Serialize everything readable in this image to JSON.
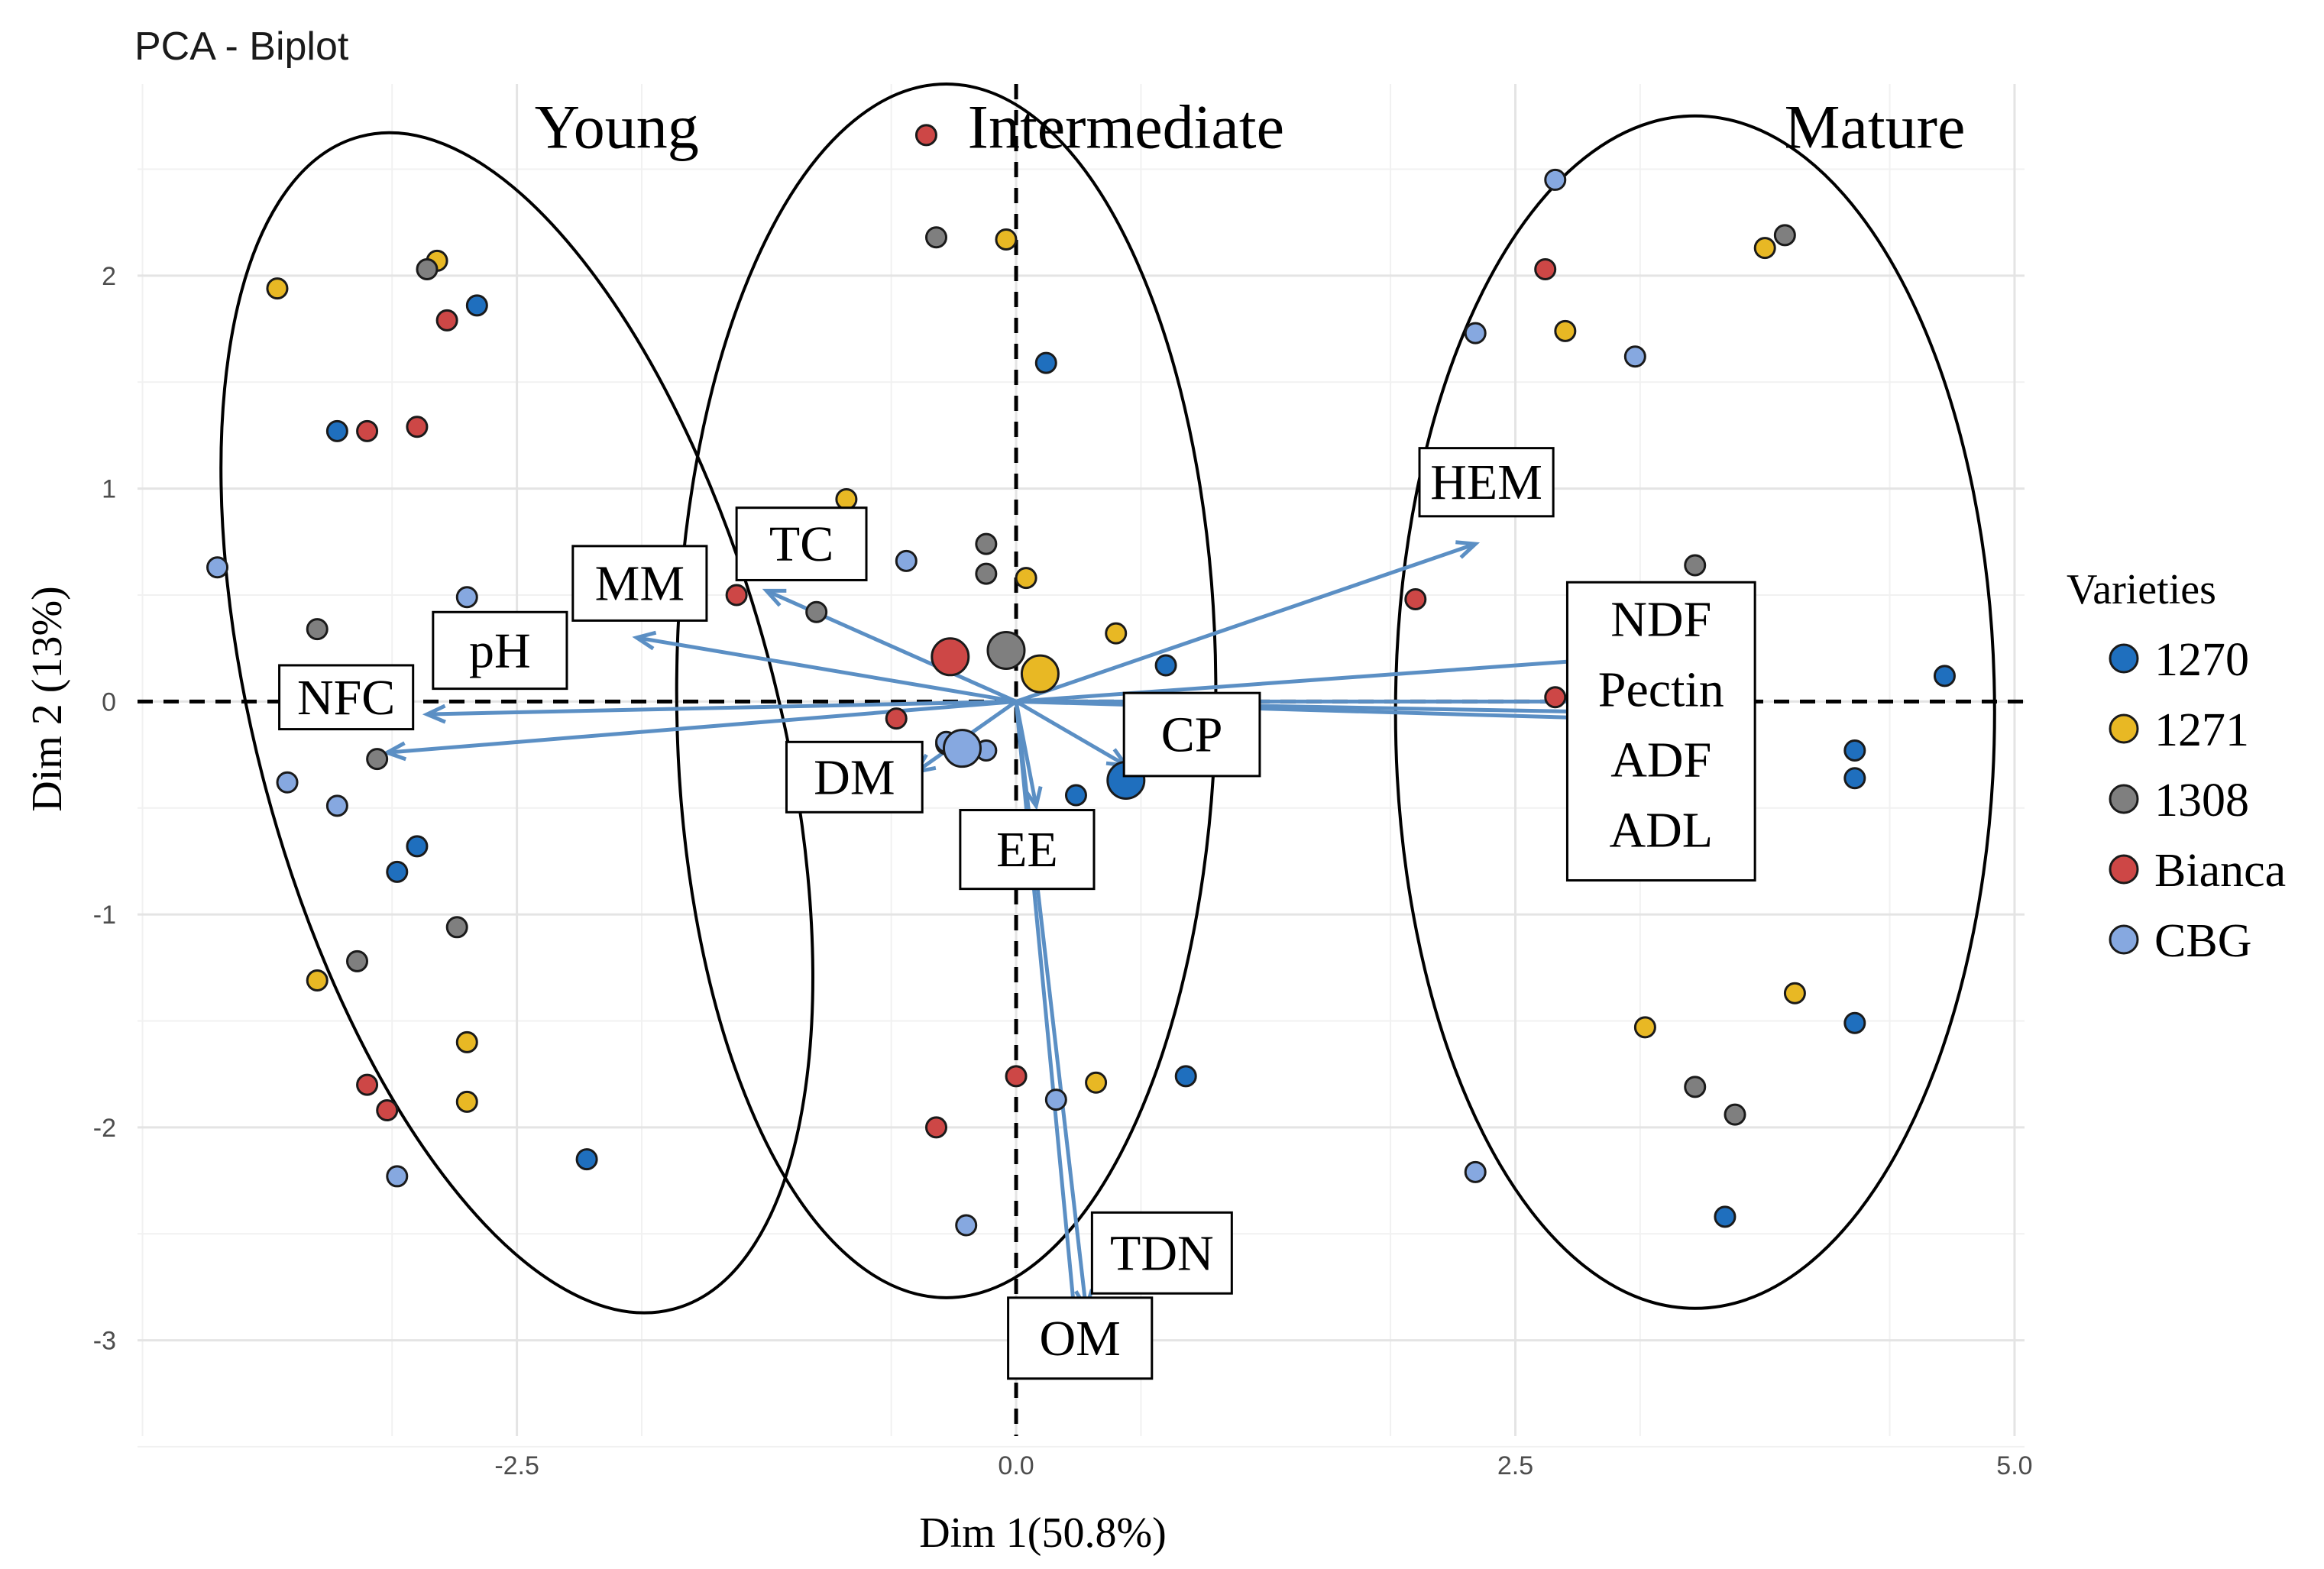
{
  "chart_data": {
    "type": "scatter",
    "title": "PCA - Biplot",
    "xlabel": "Dim 1(50.8%)",
    "ylabel": "Dim 2 (13%)",
    "xlim": [
      -4.4,
      5.05
    ],
    "ylim": [
      -3.45,
      2.9
    ],
    "x_ticks": [
      -2.5,
      0.0,
      2.5,
      5.0
    ],
    "x_tick_labels": [
      "-2.5",
      "0.0",
      "2.5",
      "5.0"
    ],
    "y_ticks": [
      -3,
      -2,
      -1,
      0,
      1,
      2
    ],
    "y_tick_labels": [
      "-3",
      "-2",
      "-1",
      "0",
      "1",
      "2"
    ],
    "grid": true,
    "legend": {
      "title": "Varieties",
      "position": "right",
      "entries": [
        "1270",
        "1271",
        "1308",
        "Bianca",
        "CBG"
      ]
    },
    "colors": {
      "1270": "#1f6fbe",
      "1271": "#e8b824",
      "1308": "#7f7f7f",
      "Bianca": "#cd4746",
      "CBG": "#86a8e0",
      "arrow": "#5b8fc4"
    },
    "groups": [
      {
        "label": "Young",
        "center": [
          -2.5,
          -0.1
        ],
        "rx": 1.3,
        "ry": 2.85,
        "rotation_deg": 15
      },
      {
        "label": "Intermediate",
        "center": [
          -0.35,
          0.05
        ],
        "rx": 1.35,
        "ry": 2.85,
        "rotation_deg": 0
      },
      {
        "label": "Mature",
        "center": [
          3.4,
          -0.05
        ],
        "rx": 1.5,
        "ry": 2.8,
        "rotation_deg": 0
      }
    ],
    "series": [
      {
        "name": "1270",
        "points": [
          [
            -2.7,
            1.86
          ],
          [
            -3.4,
            1.27
          ],
          [
            -3.0,
            -0.68
          ],
          [
            -3.1,
            -0.8
          ],
          [
            -2.15,
            -2.15
          ],
          [
            0.15,
            1.59
          ],
          [
            0.75,
            0.17
          ],
          [
            0.3,
            -0.44
          ],
          [
            0.85,
            -1.76
          ],
          [
            4.65,
            0.12
          ],
          [
            4.2,
            -0.23
          ],
          [
            4.2,
            -0.36
          ],
          [
            4.2,
            -1.51
          ],
          [
            3.55,
            -2.42
          ]
        ]
      },
      {
        "name": "1271",
        "points": [
          [
            -3.7,
            1.94
          ],
          [
            -2.9,
            2.07
          ],
          [
            -3.5,
            -1.31
          ],
          [
            -2.75,
            -1.6
          ],
          [
            -2.75,
            -1.88
          ],
          [
            -0.85,
            0.95
          ],
          [
            -0.05,
            2.17
          ],
          [
            0.05,
            0.58
          ],
          [
            0.5,
            0.32
          ],
          [
            0.4,
            -1.79
          ],
          [
            2.75,
            1.74
          ],
          [
            3.75,
            2.13
          ],
          [
            3.9,
            -1.37
          ],
          [
            3.15,
            -1.53
          ]
        ]
      },
      {
        "name": "1308",
        "points": [
          [
            -2.95,
            2.03
          ],
          [
            -3.5,
            0.34
          ],
          [
            -3.2,
            -0.27
          ],
          [
            -3.3,
            -1.22
          ],
          [
            -2.8,
            -1.06
          ],
          [
            -0.4,
            2.18
          ],
          [
            -0.15,
            0.74
          ],
          [
            -0.15,
            0.6
          ],
          [
            -1.0,
            0.42
          ],
          [
            -0.35,
            -0.2
          ],
          [
            3.4,
            0.64
          ],
          [
            3.85,
            2.19
          ],
          [
            3.4,
            -1.81
          ],
          [
            3.6,
            -1.94
          ]
        ]
      },
      {
        "name": "Bianca",
        "points": [
          [
            -2.85,
            1.79
          ],
          [
            -3.25,
            1.27
          ],
          [
            -3.0,
            1.29
          ],
          [
            -3.25,
            -1.8
          ],
          [
            -3.15,
            -1.92
          ],
          [
            -1.4,
            0.5
          ],
          [
            -0.45,
            2.66
          ],
          [
            -0.6,
            -0.08
          ],
          [
            -0.4,
            -2.0
          ],
          [
            0.0,
            -1.76
          ],
          [
            2.65,
            2.03
          ],
          [
            2.0,
            0.48
          ],
          [
            2.7,
            0.02
          ]
        ]
      },
      {
        "name": "CBG",
        "points": [
          [
            -4.0,
            0.63
          ],
          [
            -2.75,
            0.49
          ],
          [
            -3.65,
            -0.38
          ],
          [
            -3.4,
            -0.49
          ],
          [
            -3.1,
            -2.23
          ],
          [
            -0.55,
            0.66
          ],
          [
            -0.35,
            -0.19
          ],
          [
            -0.15,
            -0.23
          ],
          [
            0.2,
            -1.87
          ],
          [
            -0.25,
            -2.46
          ],
          [
            2.7,
            2.45
          ],
          [
            2.3,
            1.73
          ],
          [
            3.1,
            1.62
          ],
          [
            2.3,
            -2.21
          ]
        ]
      }
    ],
    "centroids": [
      {
        "name": "1270",
        "point": [
          0.55,
          -0.37
        ]
      },
      {
        "name": "1271",
        "point": [
          0.12,
          0.13
        ]
      },
      {
        "name": "1308",
        "point": [
          -0.05,
          0.24
        ]
      },
      {
        "name": "Bianca",
        "point": [
          -0.33,
          0.21
        ]
      },
      {
        "name": "CBG",
        "point": [
          -0.27,
          -0.22
        ]
      }
    ],
    "arrows": [
      {
        "to": [
          -3.15,
          -0.24
        ]
      },
      {
        "to": [
          -2.95,
          -0.06
        ]
      },
      {
        "to": [
          -1.9,
          0.3
        ]
      },
      {
        "to": [
          -1.25,
          0.52
        ]
      },
      {
        "to": [
          -0.5,
          -0.33
        ]
      },
      {
        "to": [
          0.1,
          -0.49
        ]
      },
      {
        "to": [
          0.55,
          -0.3
        ]
      },
      {
        "to": [
          2.3,
          0.74
        ]
      },
      {
        "to": [
          2.95,
          0.2
        ]
      },
      {
        "to": [
          2.95,
          0.0
        ]
      },
      {
        "to": [
          2.95,
          -0.05
        ]
      },
      {
        "to": [
          2.95,
          -0.08
        ]
      },
      {
        "to": [
          0.35,
          -2.85
        ]
      },
      {
        "to": [
          0.3,
          -2.95
        ]
      }
    ],
    "variables": [
      {
        "label": "HEM",
        "box": [
          2.02,
          1.19,
          2.69,
          0.87
        ]
      },
      {
        "label": "TC",
        "box": [
          -1.4,
          0.91,
          -0.75,
          0.57
        ]
      },
      {
        "label": "MM",
        "box": [
          -2.22,
          0.73,
          -1.55,
          0.38
        ]
      },
      {
        "label": "pH",
        "box": [
          -2.92,
          0.42,
          -2.25,
          0.06
        ]
      },
      {
        "label": "NFC",
        "box": [
          -3.69,
          0.17,
          -3.02,
          -0.13
        ]
      },
      {
        "label": "DM",
        "box": [
          -1.15,
          -0.19,
          -0.47,
          -0.52
        ]
      },
      {
        "label": "EE",
        "box": [
          -0.28,
          -0.51,
          0.39,
          -0.88
        ]
      },
      {
        "label": "CP",
        "box": [
          0.54,
          0.04,
          1.22,
          -0.35
        ]
      },
      {
        "label": "TDN",
        "box": [
          0.38,
          -2.4,
          1.08,
          -2.78
        ]
      },
      {
        "label": "OM",
        "box": [
          -0.04,
          -2.8,
          0.68,
          -3.18
        ]
      },
      {
        "label": "NDF",
        "box": [
          2.76,
          0.56,
          3.7,
          -0.84
        ]
      },
      {
        "label": "Pectin",
        "box": null
      },
      {
        "label": "ADF",
        "box": null
      },
      {
        "label": "ADL",
        "box": null
      }
    ]
  }
}
